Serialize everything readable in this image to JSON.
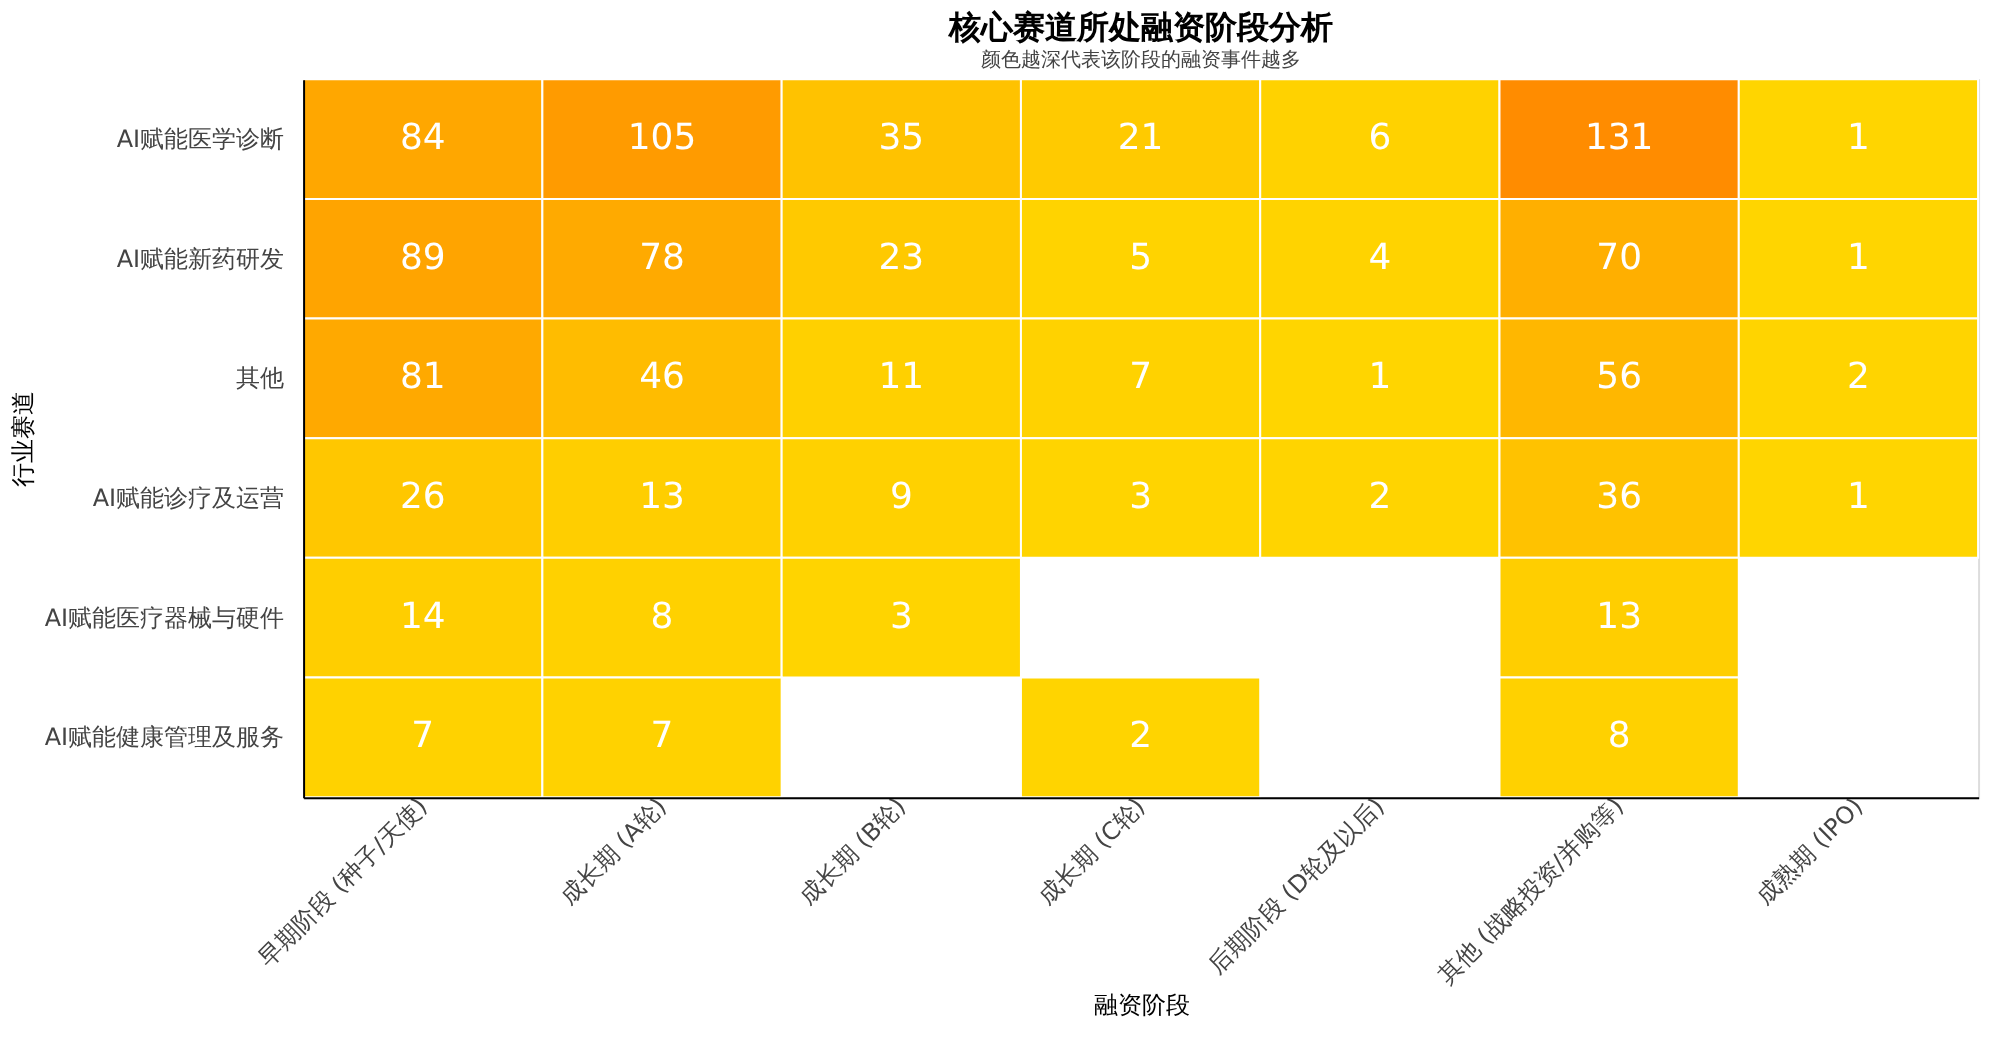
{
  "chart_data": {
    "type": "heatmap",
    "title": "核心赛道所处融资阶段分析",
    "subtitle": "颜色越深代表该阶段的融资事件越多",
    "xlabel": "融资阶段",
    "ylabel": "行业赛道",
    "categories": [
      "早期阶段 (种子/天使)",
      "成长期 (A轮)",
      "成长期 (B轮)",
      "成长期 (C轮)",
      "后期阶段 (D轮及以后)",
      "其他 (战略投资/并购等)",
      "成熟期 (IPO)"
    ],
    "y_categories": [
      "AI赋能医学诊断",
      "AI赋能新药研发",
      "其他",
      "AI赋能诊疗及运营",
      "AI赋能医疗器械与硬件",
      "AI赋能健康管理及服务"
    ],
    "cells": [
      [
        84,
        105,
        35,
        21,
        6,
        131,
        1
      ],
      [
        89,
        78,
        23,
        5,
        4,
        70,
        1
      ],
      [
        81,
        46,
        11,
        7,
        1,
        56,
        2
      ],
      [
        26,
        13,
        9,
        3,
        2,
        36,
        1
      ],
      [
        14,
        8,
        3,
        null,
        null,
        13,
        null
      ],
      [
        7,
        7,
        null,
        2,
        null,
        8,
        null
      ]
    ],
    "colors": [
      "#ffd500",
      "#ff8c00"
    ],
    "data_labels": true
  }
}
